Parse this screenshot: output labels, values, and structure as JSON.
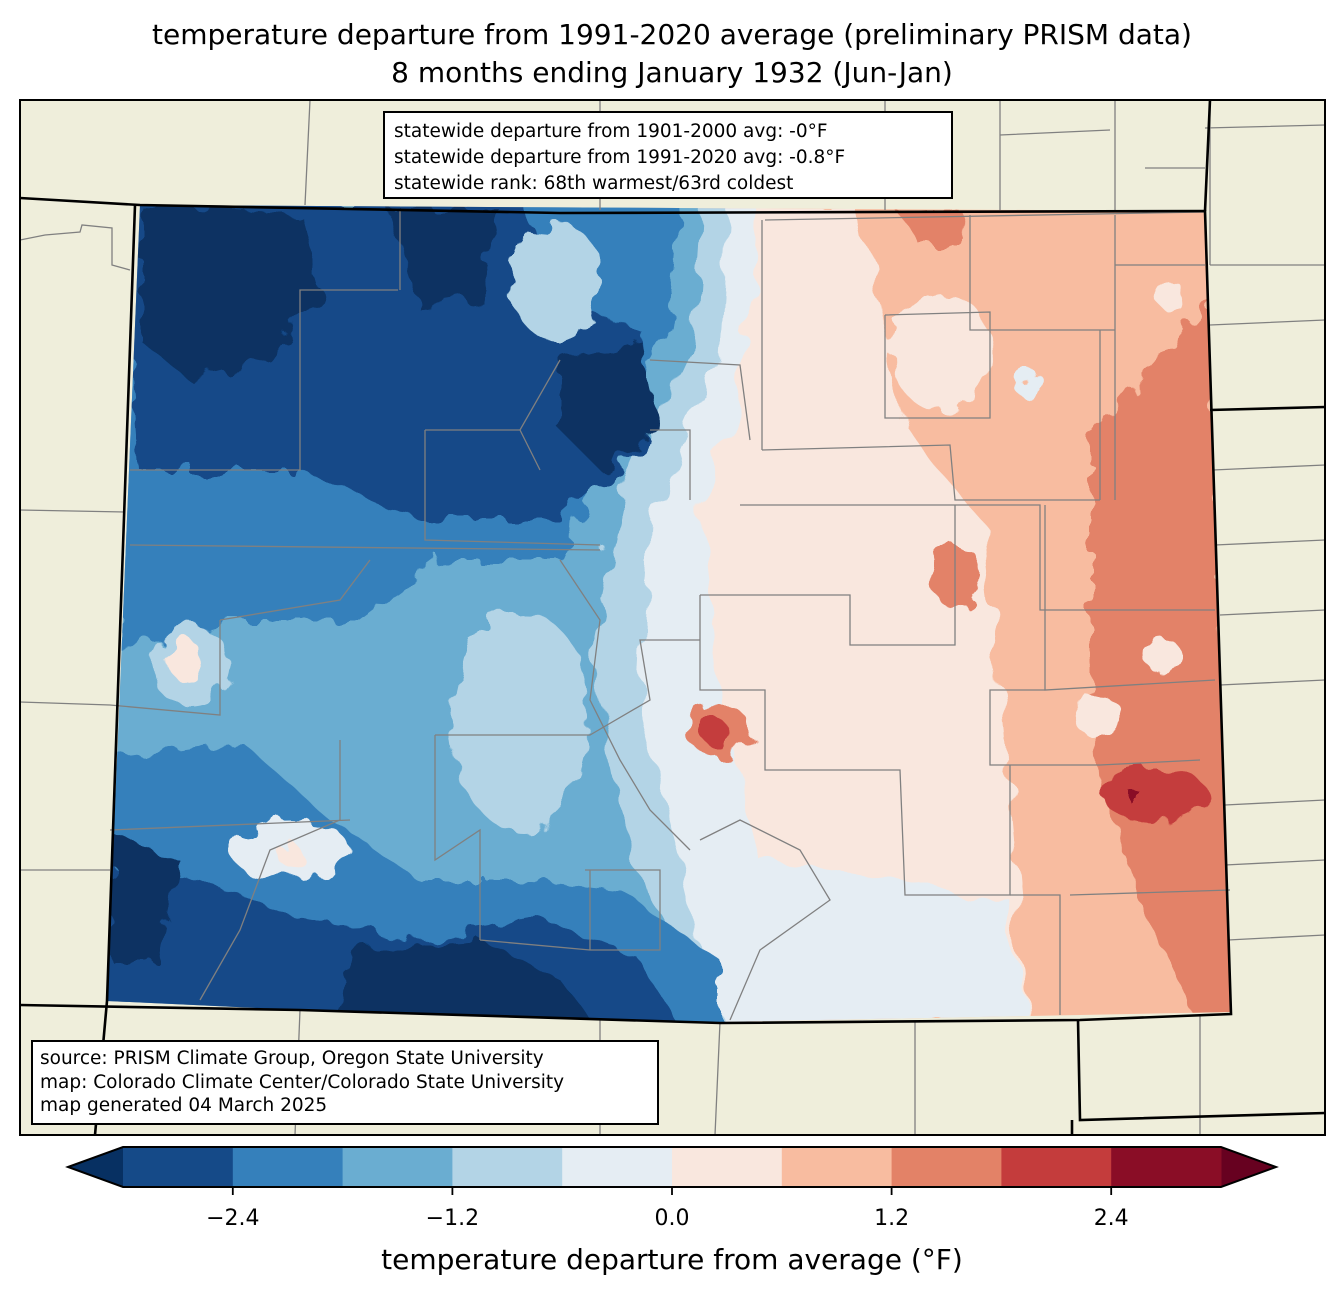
{
  "title": {
    "line1": "temperature departure from 1991-2020 average (preliminary PRISM data)",
    "line2": "8 months ending January 1932 (Jun-Jan)"
  },
  "stats_box": {
    "lines": [
      "statewide departure from 1901-2000 avg: -0°F",
      "statewide departure from 1991-2020 avg: -0.8°F",
      "statewide rank: 68th warmest/63rd coldest"
    ]
  },
  "credit_box": {
    "lines": [
      "source: PRISM Climate Group, Oregon State University",
      "map: Colorado Climate Center/Colorado State University",
      "map generated 04 March 2025"
    ]
  },
  "colorbar": {
    "label": "temperature departure from average (°F)",
    "levels": [
      -3.0,
      -2.4,
      -1.8,
      -1.2,
      -0.6,
      0.0,
      0.6,
      1.2,
      1.8,
      2.4,
      3.0
    ],
    "ticks": [
      -2.4,
      -1.2,
      0.0,
      1.2,
      2.4
    ],
    "tick_labels": [
      "−2.4",
      "−1.2",
      "0.0",
      "1.2",
      "2.4"
    ],
    "colors": [
      "#154a88",
      "#3580bb",
      "#6aadd1",
      "#b3d4e6",
      "#e5edf3",
      "#f9e7de",
      "#f8bca0",
      "#e38267",
      "#c43c3c",
      "#8a0d26"
    ],
    "under_color": "#073062",
    "over_color": "#670120",
    "extend": "both"
  },
  "map": {
    "region": "Colorado",
    "land_color": "#efeedb",
    "county_line_color": "#808080",
    "state_line_color": "#000000",
    "pattern_summary": "cold departures (blue) across western mountains; warm departures (red) across eastern plains; warmest spot in east-central (Kit Carson/Cheyenne area) exceeding +2.4°F",
    "notable_features": [
      {
        "area": "northwest",
        "departure_range": "below -2.4"
      },
      {
        "area": "north park / central mountains",
        "departure_range": "-1.8 to -0.6"
      },
      {
        "area": "south-central (San Juans / Rio Grande)",
        "departure_range": "below -2.4"
      },
      {
        "area": "Front Range urban corridor",
        "departure_range": "-0.6 to 0.6"
      },
      {
        "area": "eastern plains",
        "departure_range": "0.6 to 1.8"
      },
      {
        "area": "east-central border",
        "departure_range": "1.8 to 3.0"
      },
      {
        "area": "El Paso/Teller small warm spot",
        "departure_range": "1.8 to 2.4"
      }
    ]
  },
  "chart_data": {
    "type": "heatmap",
    "title": "temperature departure from 1991-2020 average (preliminary PRISM data) — 8 months ending January 1932 (Jun-Jan)",
    "colorbar_label": "temperature departure from average (°F)",
    "vmin": -3.0,
    "vmax": 3.0,
    "levels": [
      -3.0,
      -2.4,
      -1.8,
      -1.2,
      -0.6,
      0.0,
      0.6,
      1.2,
      1.8,
      2.4,
      3.0
    ],
    "statewide_departure_1901_2000": -0.0,
    "statewide_departure_1991_2020": -0.8,
    "rank_warmest": 68,
    "rank_coldest": 63
  }
}
